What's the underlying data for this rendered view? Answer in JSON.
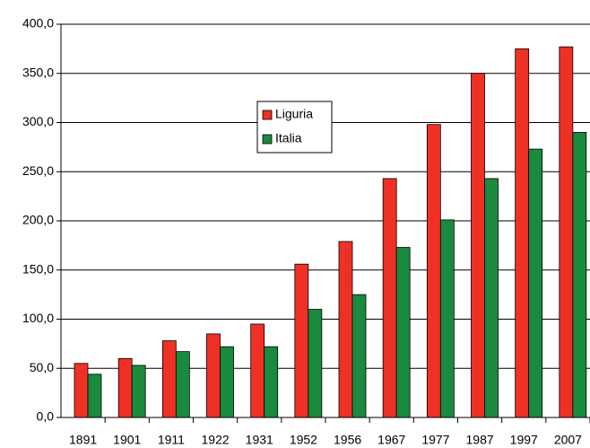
{
  "chart_data": {
    "type": "bar",
    "categories": [
      "1891",
      "1901",
      "1911",
      "1922",
      "1931",
      "1952",
      "1956",
      "1967",
      "1977",
      "1987",
      "1997",
      "2007"
    ],
    "series": [
      {
        "name": "Liguria",
        "color": "#ee3124",
        "values": [
          55,
          60,
          78,
          85,
          95,
          156,
          179,
          243,
          298,
          350,
          375,
          377
        ]
      },
      {
        "name": "Italia",
        "color": "#1a8a3e",
        "values": [
          44,
          53,
          67,
          72,
          72,
          110,
          125,
          173,
          201,
          243,
          273,
          290
        ]
      }
    ],
    "ylim": [
      0,
      400
    ],
    "yticks": [
      {
        "value": 0,
        "label": "0,0"
      },
      {
        "value": 50,
        "label": "50,0"
      },
      {
        "value": 100,
        "label": "100,0"
      },
      {
        "value": 150,
        "label": "150,0"
      },
      {
        "value": 200,
        "label": "200,0"
      },
      {
        "value": 250,
        "label": "250,0"
      },
      {
        "value": 300,
        "label": "300,0"
      },
      {
        "value": 350,
        "label": "350,0"
      },
      {
        "value": 400,
        "label": "400,0"
      }
    ],
    "grid": true
  }
}
